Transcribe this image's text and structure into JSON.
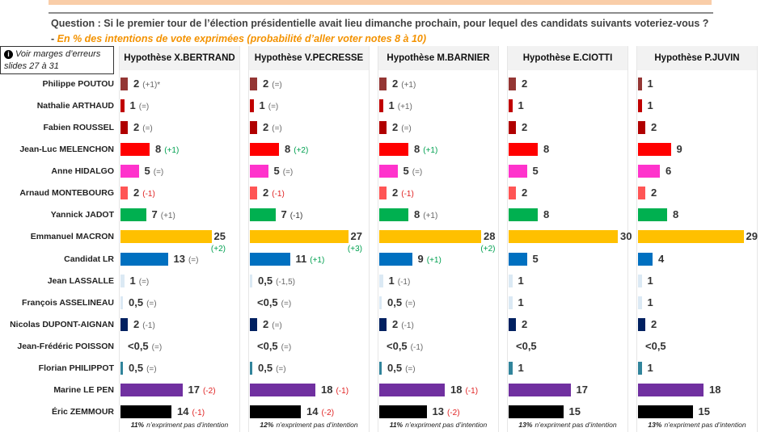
{
  "question": {
    "text": "Question : Si le premier tour de l’élection présidentielle avait lieu dimanche prochain, pour lequel des candidats suivants voteriez-vous ? - ",
    "subtitle": "En % des intentions de vote exprimées (probabilité d’aller voter notes 8 à 10)"
  },
  "note": {
    "icon": "info-icon",
    "text": "Voir marges d’erreurs slides 27 à 31"
  },
  "chart_data": {
    "type": "bar",
    "orientation": "horizontal",
    "categories": [
      "Philippe POUTOU",
      "Nathalie ARTHAUD",
      "Fabien ROUSSEL",
      "Jean-Luc MELENCHON",
      "Anne HIDALGO",
      "Arnaud MONTEBOURG",
      "Yannick JADOT",
      "Emmanuel MACRON",
      "Candidat LR",
      "Jean LASSALLE",
      "François ASSELINEAU",
      "Nicolas DUPONT-AIGNAN",
      "Jean-Frédéric POISSON",
      "Florian PHILIPPOT",
      "Marine LE PEN",
      "Éric ZEMMOUR"
    ],
    "colors": [
      "#943634",
      "#c00000",
      "#b00000",
      "#ff0000",
      "#ff33cc",
      "#ff5555",
      "#00b050",
      "#ffc000",
      "#0070c0",
      "#dbe9f4",
      "#dbe9f4",
      "#002060",
      "#ffffff",
      "#31849b",
      "#7030a0",
      "#000000"
    ],
    "series": [
      {
        "name": "Hypothèse X.BERTRAND",
        "footer_pct": "11%",
        "footer_text": "n’expriment pas d’intention",
        "cells": [
          {
            "label": "2",
            "value": 2,
            "change": "(+1)*",
            "trend": "neutral"
          },
          {
            "label": "1",
            "value": 1,
            "change": "(=)",
            "trend": "neutral"
          },
          {
            "label": "2",
            "value": 2,
            "change": "(=)",
            "trend": "neutral"
          },
          {
            "label": "8",
            "value": 8,
            "change": "(+1)",
            "trend": "up"
          },
          {
            "label": "5",
            "value": 5,
            "change": "(=)",
            "trend": "neutral"
          },
          {
            "label": "2",
            "value": 2,
            "change": "(-1)",
            "trend": "down"
          },
          {
            "label": "7",
            "value": 7,
            "change": "(+1)",
            "trend": "neutral"
          },
          {
            "label": "25",
            "value": 25,
            "change": "(+2)",
            "trend": "up"
          },
          {
            "label": "13",
            "value": 13,
            "change": "(=)",
            "trend": "neutral"
          },
          {
            "label": "1",
            "value": 1,
            "change": "(=)",
            "trend": "neutral"
          },
          {
            "label": "0,5",
            "value": 0.5,
            "change": "(=)",
            "trend": "neutral"
          },
          {
            "label": "2",
            "value": 2,
            "change": "(-1)",
            "trend": "neutral"
          },
          {
            "label": "<0,5",
            "value": 0,
            "change": "(=)",
            "trend": "neutral"
          },
          {
            "label": "0,5",
            "value": 0.5,
            "change": "(=)",
            "trend": "neutral"
          },
          {
            "label": "17",
            "value": 17,
            "change": "(-2)",
            "trend": "down"
          },
          {
            "label": "14",
            "value": 14,
            "change": "(-1)",
            "trend": "down"
          }
        ]
      },
      {
        "name": "Hypothèse V.PECRESSE",
        "footer_pct": "12%",
        "footer_text": "n’expriment pas d’intention",
        "cells": [
          {
            "label": "2",
            "value": 2,
            "change": "(=)",
            "trend": "neutral"
          },
          {
            "label": "1",
            "value": 1,
            "change": "(=)",
            "trend": "neutral"
          },
          {
            "label": "2",
            "value": 2,
            "change": "(=)",
            "trend": "neutral"
          },
          {
            "label": "8",
            "value": 8,
            "change": "(+2)",
            "trend": "up"
          },
          {
            "label": "5",
            "value": 5,
            "change": "(=)",
            "trend": "neutral"
          },
          {
            "label": "2",
            "value": 2,
            "change": "(-1)",
            "trend": "down"
          },
          {
            "label": "7",
            "value": 7,
            "change": "(-1)",
            "trend": "dark"
          },
          {
            "label": "27",
            "value": 27,
            "change": "(+3)",
            "trend": "up"
          },
          {
            "label": "11",
            "value": 11,
            "change": "(+1)",
            "trend": "up"
          },
          {
            "label": "0,5",
            "value": 0.5,
            "change": "(-1,5)",
            "trend": "neutral"
          },
          {
            "label": "<0,5",
            "value": 0,
            "change": "(=)",
            "trend": "neutral"
          },
          {
            "label": "2",
            "value": 2,
            "change": "(=)",
            "trend": "neutral"
          },
          {
            "label": "<0,5",
            "value": 0,
            "change": "(=)",
            "trend": "neutral"
          },
          {
            "label": "0,5",
            "value": 0.5,
            "change": "(=)",
            "trend": "neutral"
          },
          {
            "label": "18",
            "value": 18,
            "change": "(-1)",
            "trend": "down"
          },
          {
            "label": "14",
            "value": 14,
            "change": "(-2)",
            "trend": "down"
          }
        ]
      },
      {
        "name": "Hypothèse M.BARNIER",
        "footer_pct": "11%",
        "footer_text": "n’expriment pas d’intention",
        "cells": [
          {
            "label": "2",
            "value": 2,
            "change": "(+1)",
            "trend": "neutral"
          },
          {
            "label": "1",
            "value": 1,
            "change": "(+1)",
            "trend": "neutral"
          },
          {
            "label": "2",
            "value": 2,
            "change": "(=)",
            "trend": "neutral"
          },
          {
            "label": "8",
            "value": 8,
            "change": "(+1)",
            "trend": "up"
          },
          {
            "label": "5",
            "value": 5,
            "change": "(=)",
            "trend": "neutral"
          },
          {
            "label": "2",
            "value": 2,
            "change": "(-1)",
            "trend": "down"
          },
          {
            "label": "8",
            "value": 8,
            "change": "(+1)",
            "trend": "neutral"
          },
          {
            "label": "28",
            "value": 28,
            "change": "(+2)",
            "trend": "up"
          },
          {
            "label": "9",
            "value": 9,
            "change": "(+1)",
            "trend": "up"
          },
          {
            "label": "1",
            "value": 1,
            "change": "(-1)",
            "trend": "neutral"
          },
          {
            "label": "0,5",
            "value": 0.5,
            "change": "(=)",
            "trend": "neutral"
          },
          {
            "label": "2",
            "value": 2,
            "change": "(-1)",
            "trend": "neutral"
          },
          {
            "label": "<0,5",
            "value": 0,
            "change": "(-1)",
            "trend": "neutral"
          },
          {
            "label": "0,5",
            "value": 0.5,
            "change": "(=)",
            "trend": "neutral"
          },
          {
            "label": "18",
            "value": 18,
            "change": "(-1)",
            "trend": "down"
          },
          {
            "label": "13",
            "value": 13,
            "change": "(-2)",
            "trend": "down"
          }
        ]
      },
      {
        "name": "Hypothèse E.CIOTTI",
        "footer_pct": "13%",
        "footer_text": "n’expriment pas d’intention",
        "cells": [
          {
            "label": "2",
            "value": 2
          },
          {
            "label": "1",
            "value": 1
          },
          {
            "label": "2",
            "value": 2
          },
          {
            "label": "8",
            "value": 8
          },
          {
            "label": "5",
            "value": 5
          },
          {
            "label": "2",
            "value": 2
          },
          {
            "label": "8",
            "value": 8
          },
          {
            "label": "30",
            "value": 30
          },
          {
            "label": "5",
            "value": 5
          },
          {
            "label": "1",
            "value": 1
          },
          {
            "label": "1",
            "value": 1
          },
          {
            "label": "2",
            "value": 2
          },
          {
            "label": "<0,5",
            "value": 0
          },
          {
            "label": "1",
            "value": 1
          },
          {
            "label": "17",
            "value": 17
          },
          {
            "label": "15",
            "value": 15
          }
        ]
      },
      {
        "name": "Hypothèse P.JUVIN",
        "footer_pct": "13%",
        "footer_text": "n’expriment pas d’intention",
        "cells": [
          {
            "label": "1",
            "value": 1
          },
          {
            "label": "1",
            "value": 1
          },
          {
            "label": "2",
            "value": 2
          },
          {
            "label": "9",
            "value": 9
          },
          {
            "label": "6",
            "value": 6
          },
          {
            "label": "2",
            "value": 2
          },
          {
            "label": "8",
            "value": 8
          },
          {
            "label": "29",
            "value": 29
          },
          {
            "label": "4",
            "value": 4
          },
          {
            "label": "1",
            "value": 1
          },
          {
            "label": "1",
            "value": 1
          },
          {
            "label": "2",
            "value": 2
          },
          {
            "label": "<0,5",
            "value": 0
          },
          {
            "label": "1",
            "value": 1
          },
          {
            "label": "18",
            "value": 18
          },
          {
            "label": "15",
            "value": 15
          }
        ]
      }
    ]
  }
}
